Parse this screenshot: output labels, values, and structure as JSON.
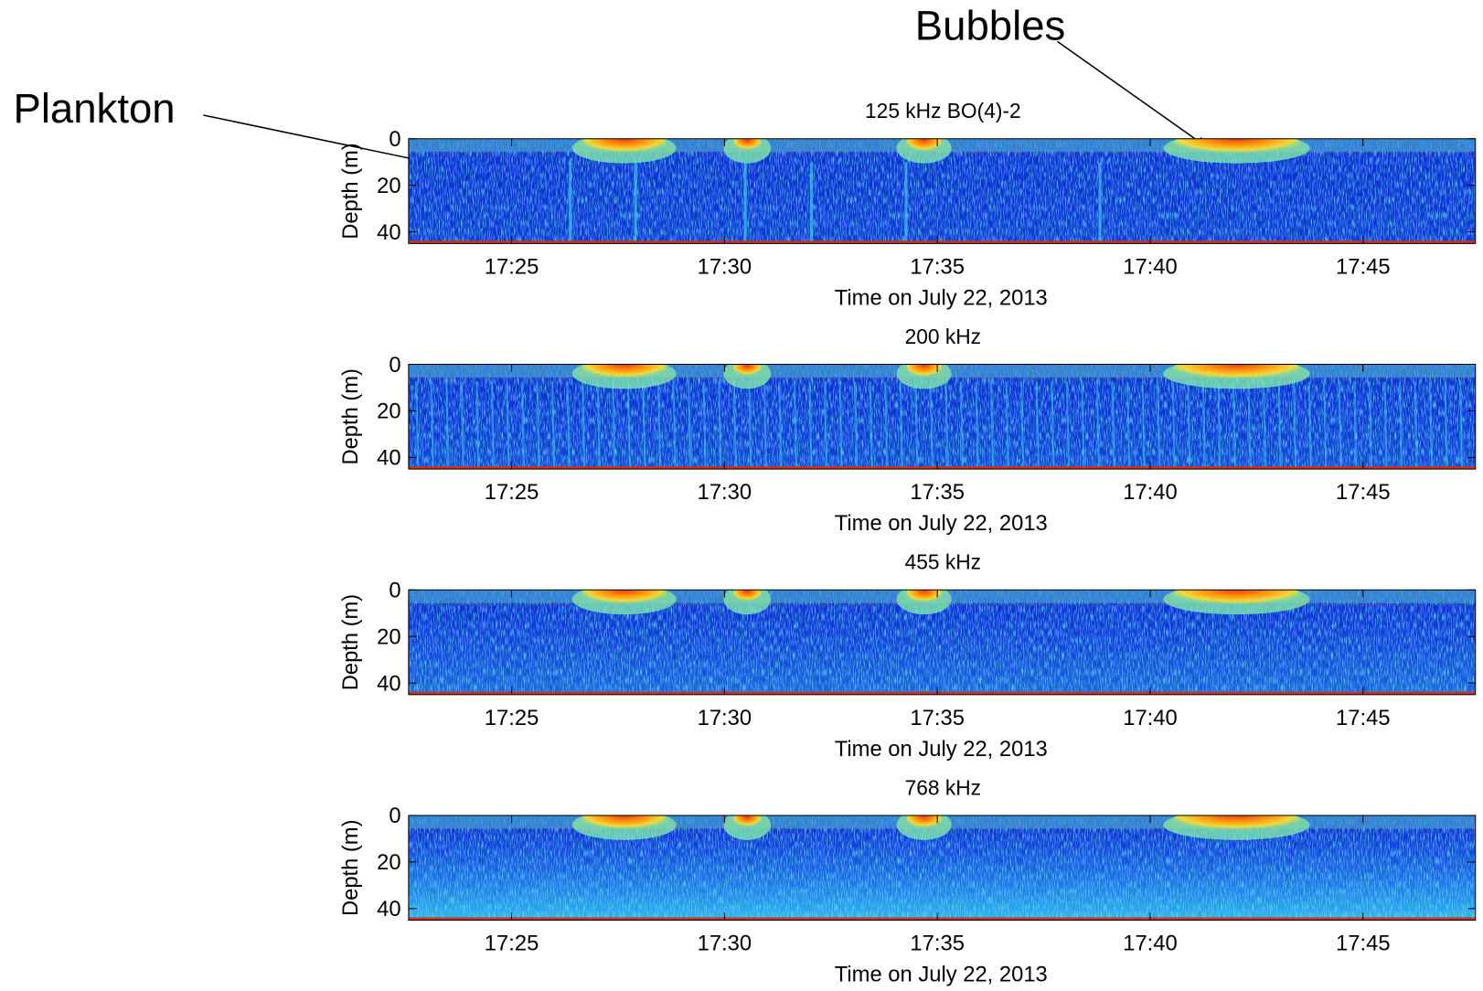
{
  "annotations": [
    "Plankton",
    "Bubbles"
  ],
  "chart_data": [
    {
      "type": "heatmap",
      "title": "125 kHz  BO(4)-2",
      "x_label": "Time on July 22, 2013",
      "y_label": "Depth (m)",
      "xlim": [
        1042.58,
        1067.64
      ],
      "xticks": [
        {
          "value": 1045,
          "label": "17:25"
        },
        {
          "value": 1050,
          "label": "17:30"
        },
        {
          "value": 1055,
          "label": "17:35"
        },
        {
          "value": 1060,
          "label": "17:40"
        },
        {
          "value": 1065,
          "label": "17:45"
        }
      ],
      "ylim": [
        0,
        45
      ],
      "yticks": [
        0,
        20,
        40
      ],
      "y_inverted": true
    },
    {
      "type": "heatmap",
      "title": "200 kHz",
      "x_label": "Time on July 22, 2013",
      "y_label": "Depth (m)",
      "xlim": [
        1042.58,
        1067.64
      ],
      "xticks": [
        {
          "value": 1045,
          "label": "17:25"
        },
        {
          "value": 1050,
          "label": "17:30"
        },
        {
          "value": 1055,
          "label": "17:35"
        },
        {
          "value": 1060,
          "label": "17:40"
        },
        {
          "value": 1065,
          "label": "17:45"
        }
      ],
      "ylim": [
        0,
        45
      ],
      "yticks": [
        0,
        20,
        40
      ],
      "y_inverted": true
    },
    {
      "type": "heatmap",
      "title": "455 kHz",
      "x_label": "Time on July 22, 2013",
      "y_label": "Depth (m)",
      "xlim": [
        1042.58,
        1067.64
      ],
      "xticks": [
        {
          "value": 1045,
          "label": "17:25"
        },
        {
          "value": 1050,
          "label": "17:30"
        },
        {
          "value": 1055,
          "label": "17:35"
        },
        {
          "value": 1060,
          "label": "17:40"
        },
        {
          "value": 1065,
          "label": "17:45"
        }
      ],
      "ylim": [
        0,
        45
      ],
      "yticks": [
        0,
        20,
        40
      ],
      "y_inverted": true
    },
    {
      "type": "heatmap",
      "title": "768 kHz",
      "x_label": "Time on July 22, 2013",
      "y_label": "Depth (m)",
      "xlim": [
        1042.58,
        1067.64
      ],
      "xticks": [
        {
          "value": 1045,
          "label": "17:25"
        },
        {
          "value": 1050,
          "label": "17:30"
        },
        {
          "value": 1055,
          "label": "17:35"
        },
        {
          "value": 1060,
          "label": "17:40"
        },
        {
          "value": 1065,
          "label": "17:45"
        }
      ],
      "ylim": [
        0,
        45
      ],
      "yticks": [
        0,
        20,
        40
      ],
      "y_inverted": true
    }
  ]
}
